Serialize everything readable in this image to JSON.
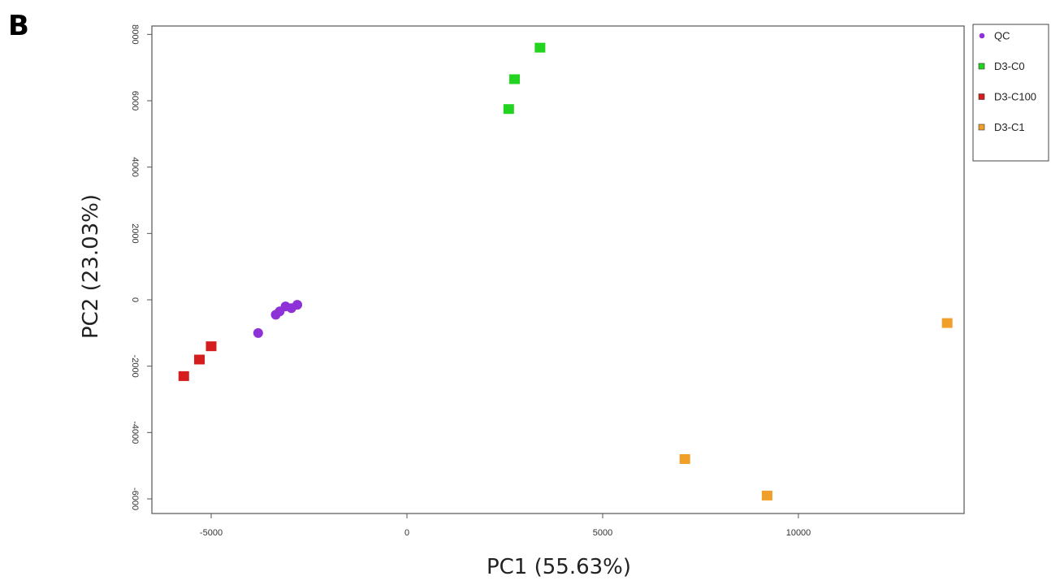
{
  "panel_label": "B",
  "chart_data": {
    "type": "scatter",
    "title": "",
    "xlabel": "PC1 (55.63%)",
    "ylabel": "PC2 (23.03%)",
    "xlim": [
      -6500,
      14500
    ],
    "ylim": [
      -6500,
      8100
    ],
    "x_ticks": [
      -5000,
      0,
      5000,
      10000
    ],
    "x_tick_labels": [
      "-5000",
      "0",
      "5000",
      "10000"
    ],
    "y_ticks": [
      -6000,
      -4000,
      -2000,
      0,
      2000,
      4000,
      6000,
      8000
    ],
    "y_tick_labels": [
      "-6000",
      "-4000",
      "-2000",
      "0",
      "2000",
      "4000",
      "6000",
      "8000"
    ],
    "grid": false,
    "legend_position": "top-right",
    "series": [
      {
        "name": "QC",
        "marker": "circle",
        "color": "#8e32d8",
        "points": [
          [
            -3800,
            -1000
          ],
          [
            -3350,
            -450
          ],
          [
            -3250,
            -350
          ],
          [
            -3100,
            -200
          ],
          [
            -2950,
            -250
          ],
          [
            -2800,
            -150
          ]
        ]
      },
      {
        "name": "D3-C0",
        "marker": "square",
        "color": "#22d31f",
        "points": [
          [
            2600,
            5750
          ],
          [
            2750,
            6650
          ],
          [
            3400,
            7600
          ]
        ]
      },
      {
        "name": "D3-C100",
        "marker": "square",
        "color": "#d61d1d",
        "points": [
          [
            -5700,
            -2300
          ],
          [
            -5300,
            -1800
          ],
          [
            -5000,
            -1400
          ]
        ]
      },
      {
        "name": "D3-C1",
        "marker": "square",
        "color": "#f0a02a",
        "points": [
          [
            7100,
            -4800
          ],
          [
            9200,
            -5900
          ],
          [
            13800,
            -700
          ]
        ]
      }
    ]
  }
}
